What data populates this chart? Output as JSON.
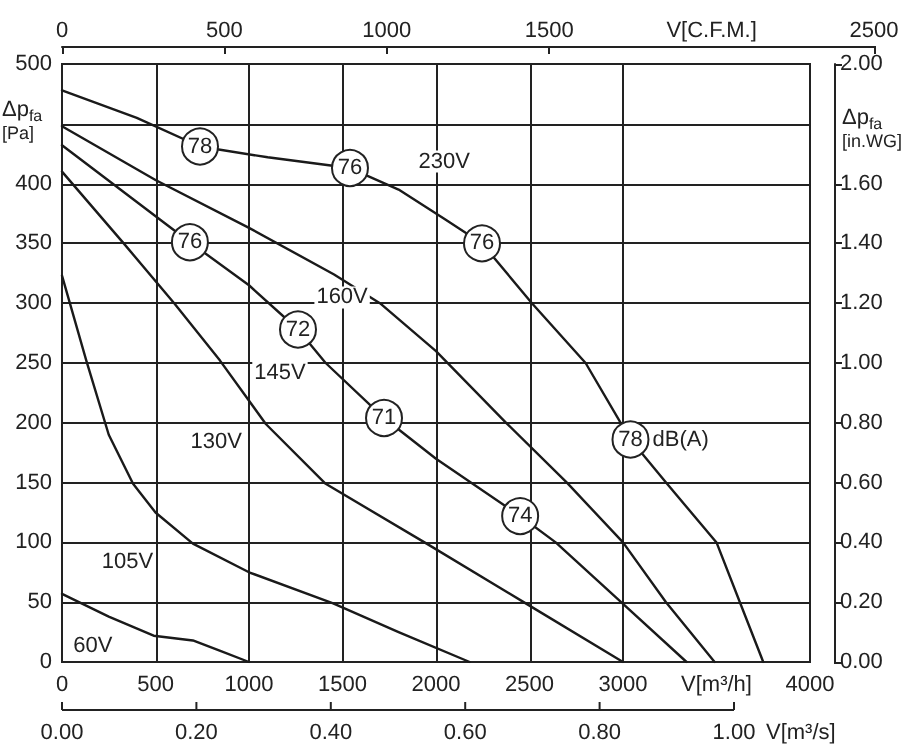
{
  "chart_data": {
    "type": "line",
    "xlabel": "V[m³/h]",
    "ylabel": "Δp$_{fa}$ [Pa]",
    "y2label": "Δp$_{fa}$ [in.WG]",
    "x2label": "V[C.F.M.]",
    "xlim": [
      0,
      4000
    ],
    "xticks": [
      0,
      500,
      1000,
      1500,
      2000,
      2500,
      3000,
      4000
    ],
    "ylim": [
      0,
      500
    ],
    "yticks": [
      0,
      50,
      100,
      150,
      200,
      250,
      300,
      350,
      400,
      {
        "value": 450,
        "label": null
      },
      500
    ],
    "y2lim": [
      0,
      2
    ],
    "y2ticks": [
      {
        "value": 0,
        "label": "0.00"
      },
      {
        "value": 0.2,
        "label": "0.20"
      },
      {
        "value": 0.4,
        "label": "0.40"
      },
      {
        "value": 0.6,
        "label": "0.60"
      },
      {
        "value": 0.8,
        "label": "0.80"
      },
      {
        "value": 1,
        "label": "1.00"
      },
      {
        "value": 1.2,
        "label": "1.20"
      },
      {
        "value": 1.4,
        "label": "1.40"
      },
      {
        "value": 1.6,
        "label": "1.60"
      },
      {
        "value": 2,
        "label": "2.00"
      }
    ],
    "x2lim": [
      0,
      2500
    ],
    "x2ticks": [
      0,
      500,
      1000,
      1500,
      2500
    ],
    "grid": true,
    "marker": "none",
    "line_style": "solid",
    "legend": false,
    "series": [
      {
        "name": "230V",
        "color": "#1a1a1a",
        "x": [
          0,
          400,
          738,
          1100,
          1540,
          1800,
          2050,
          2246,
          2513,
          2800,
          3040,
          3230,
          3500,
          3625,
          3750
        ],
        "values": [
          478,
          455,
          431,
          422,
          413,
          395,
          370,
          350,
          300,
          250,
          186,
          150,
          100,
          50,
          0
        ]
      },
      {
        "name": "160V",
        "color": "#1a1a1a",
        "x": [
          0,
          500,
          1000,
          1455,
          1700,
          2000,
          2375,
          2700,
          3000,
          3230,
          3490
        ],
        "values": [
          448,
          403,
          363,
          324,
          300,
          260,
          200,
          150,
          100,
          50,
          0
        ]
      },
      {
        "name": "145V",
        "color": "#1a1a1a",
        "x": [
          0,
          684,
          1000,
          1262,
          1410,
          1722,
          2000,
          2450,
          2640,
          2990,
          3340
        ],
        "values": [
          432,
          351,
          315,
          278,
          250,
          204,
          170,
          122,
          100,
          50,
          0
        ]
      },
      {
        "name": "130V",
        "color": "#1a1a1a",
        "x": [
          0,
          330,
          600,
          845,
          1090,
          1410,
          1950,
          2480,
          3000
        ],
        "values": [
          410,
          350,
          300,
          252,
          199,
          149,
          99,
          49,
          0
        ]
      },
      {
        "name": "105V",
        "color": "#1a1a1a",
        "x": [
          0,
          130,
          250,
          380,
          500,
          700,
          1000,
          1450,
          1800,
          2180
        ],
        "values": [
          323,
          252,
          190,
          149,
          125,
          99,
          75,
          49,
          25,
          0
        ]
      },
      {
        "name": "60V",
        "color": "#1a1a1a",
        "x": [
          0,
          250,
          490,
          700,
          850,
          1000
        ],
        "values": [
          57,
          38,
          22,
          18,
          9,
          0
        ]
      }
    ],
    "annotations": [
      {
        "text": "78",
        "x": 738,
        "y": 431
      },
      {
        "text": "76",
        "x": 1540,
        "y": 413
      },
      {
        "text": "76",
        "x": 2246,
        "y": 350
      },
      {
        "text": "76",
        "x": 684,
        "y": 351
      },
      {
        "text": "72",
        "x": 1262,
        "y": 278
      },
      {
        "text": "71",
        "x": 1722,
        "y": 204
      },
      {
        "text": "74",
        "x": 2450,
        "y": 122
      },
      {
        "text": "78",
        "x": 3040,
        "y": 186
      },
      "dB(A)",
      "0.00",
      "0.20",
      "0.40",
      "0.60",
      "0.80",
      "1.00",
      "V[m³/s]"
    ]
  }
}
